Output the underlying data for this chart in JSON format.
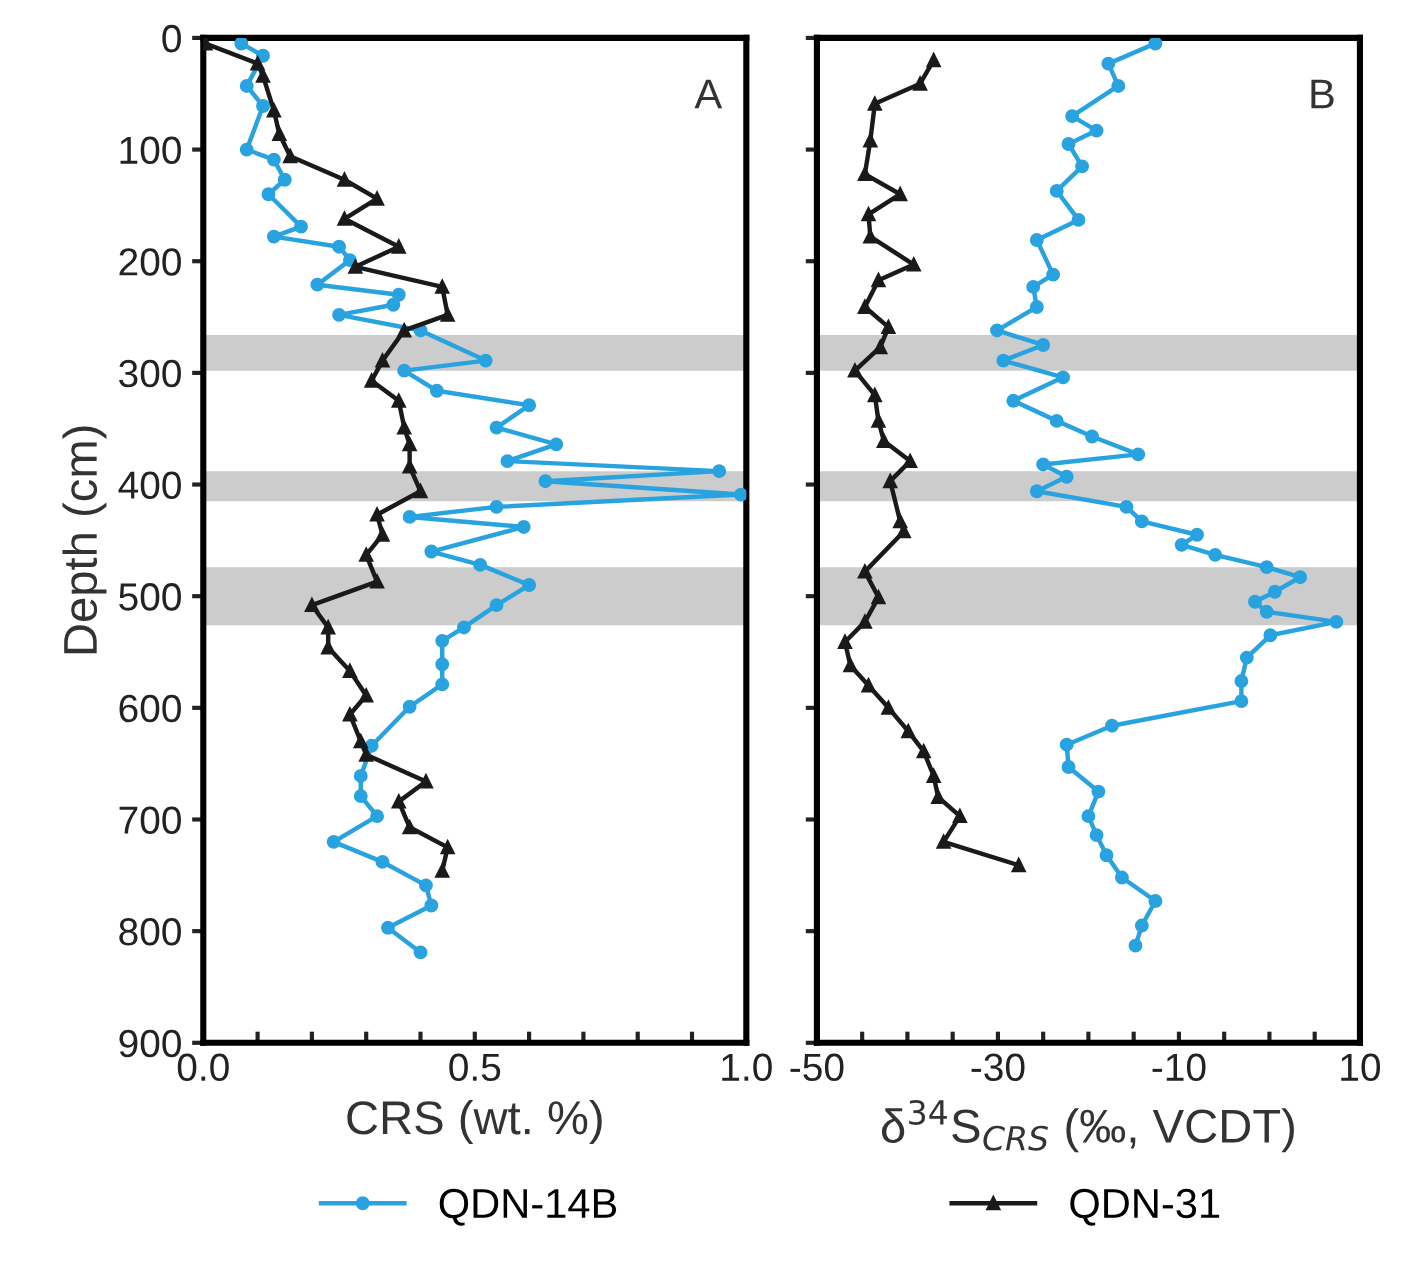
{
  "chart_data": [
    {
      "type": "line",
      "xlabel": "CRS (wt. %)",
      "ylabel": "Depth (cm)",
      "annotations": [
        "A"
      ],
      "xlim": [
        0,
        1.0
      ],
      "ylim": [
        900,
        0
      ],
      "xticks": [
        {
          "value": 0,
          "label": "0.0"
        },
        {
          "value": 0.1,
          "label": null
        },
        {
          "value": 0.2,
          "label": null
        },
        {
          "value": 0.3,
          "label": null
        },
        {
          "value": 0.4,
          "label": null
        },
        {
          "value": 0.5,
          "label": "0.5"
        },
        {
          "value": 0.6,
          "label": null
        },
        {
          "value": 0.7,
          "label": null
        },
        {
          "value": 0.8,
          "label": null
        },
        {
          "value": 0.9,
          "label": null
        },
        {
          "value": 1.0,
          "label": "1.0"
        }
      ],
      "yticks": [
        0,
        100,
        200,
        300,
        400,
        500,
        600,
        700,
        800,
        900
      ],
      "legend": "bottom",
      "line_style": "solid",
      "bands": [
        {
          "axis": "y",
          "from": 266,
          "to": 298,
          "color": "#cccccc"
        },
        {
          "axis": "y",
          "from": 388,
          "to": 415,
          "color": "#cccccc"
        },
        {
          "axis": "y",
          "from": 474,
          "to": 526,
          "color": "#cccccc"
        }
      ],
      "series": [
        {
          "name": "QDN-14B",
          "color": "#29a3e0",
          "marker": "circle",
          "x": [
            0.07,
            0.11,
            0.08,
            0.11,
            0.08,
            0.13,
            0.15,
            0.12,
            0.18,
            0.13,
            0.25,
            0.27,
            0.21,
            0.36,
            0.35,
            0.25,
            0.4,
            0.52,
            0.37,
            0.43,
            0.6,
            0.54,
            0.65,
            0.56,
            0.95,
            0.63,
            0.99,
            0.54,
            0.38,
            0.59,
            0.42,
            0.51,
            0.6,
            0.54,
            0.48,
            0.44,
            0.44,
            0.44,
            0.38,
            0.31,
            0.29,
            0.29,
            0.32,
            0.24,
            0.33,
            0.41,
            0.42,
            0.34,
            0.4
          ],
          "values": [
            5,
            16,
            43,
            61,
            100,
            109,
            127,
            140,
            169,
            178,
            187,
            199,
            221,
            230,
            239,
            248,
            262,
            289,
            298,
            316,
            329,
            349,
            364,
            379,
            388,
            397,
            409,
            420,
            429,
            438,
            460,
            472,
            490,
            508,
            528,
            540,
            561,
            579,
            599,
            634,
            661,
            679,
            697,
            720,
            738,
            759,
            777,
            797,
            819
          ]
        },
        {
          "name": "QDN-31",
          "color": "#1a1a1a",
          "marker": "triangle",
          "x": [
            0.004,
            0.1,
            0.11,
            0.13,
            0.14,
            0.16,
            0.26,
            0.32,
            0.26,
            0.36,
            0.28,
            0.44,
            0.45,
            0.37,
            0.33,
            0.31,
            0.36,
            0.37,
            0.38,
            0.38,
            0.4,
            0.32,
            0.33,
            0.3,
            0.32,
            0.2,
            0.23,
            0.23,
            0.27,
            0.3,
            0.27,
            0.29,
            0.3,
            0.41,
            0.36,
            0.38,
            0.45,
            0.44
          ],
          "values": [
            5,
            23,
            34,
            65,
            86,
            106,
            127,
            144,
            162,
            187,
            205,
            223,
            248,
            262,
            289,
            307,
            325,
            349,
            364,
            384,
            406,
            427,
            445,
            463,
            487,
            508,
            528,
            546,
            567,
            589,
            606,
            630,
            642,
            666,
            684,
            707,
            725,
            746
          ]
        }
      ]
    },
    {
      "type": "line",
      "xlabel": "δ$^{34}$S$_{CRS}$ (‰, VCDT)",
      "annotations": [
        "B"
      ],
      "xlim": [
        -50,
        10
      ],
      "ylim": [
        900,
        0
      ],
      "tick_labels": "x",
      "xticks": [
        -50,
        {
          "value": -45,
          "label": null
        },
        {
          "value": -40,
          "label": null
        },
        {
          "value": -35,
          "label": null
        },
        -30,
        {
          "value": -25,
          "label": null
        },
        {
          "value": -20,
          "label": null
        },
        {
          "value": -15,
          "label": null
        },
        -10,
        {
          "value": -5,
          "label": null
        },
        {
          "value": 0,
          "label": null
        },
        {
          "value": 5,
          "label": null
        },
        10
      ],
      "yticks": [
        0,
        100,
        200,
        300,
        400,
        500,
        600,
        700,
        800,
        900
      ],
      "line_style": "solid",
      "bands": [
        {
          "axis": "y",
          "from": 266,
          "to": 298,
          "color": "#cccccc"
        },
        {
          "axis": "y",
          "from": 388,
          "to": 415,
          "color": "#cccccc"
        },
        {
          "axis": "y",
          "from": 474,
          "to": 526,
          "color": "#cccccc"
        }
      ],
      "series": [
        {
          "name": "QDN-14B",
          "color": "#29a3e0",
          "marker": "circle",
          "x": [
            -12.6,
            -17.8,
            -16.7,
            -21.8,
            -19.1,
            -22.2,
            -20.7,
            -23.5,
            -21.1,
            -25.7,
            -23.9,
            -26.1,
            -25.7,
            -30.1,
            -25.0,
            -29.4,
            -22.8,
            -28.3,
            -23.5,
            -19.6,
            -14.5,
            -25.0,
            -22.4,
            -25.7,
            -15.8,
            -14.1,
            -8.0,
            -9.7,
            -6.0,
            -0.3,
            3.4,
            0.6,
            -1.6,
            -0.3,
            7.4,
            0.1,
            -2.5,
            -3.1,
            -3.1,
            -17.4,
            -22.4,
            -22.2,
            -18.9,
            -20.0,
            -19.1,
            -18.0,
            -16.3,
            -12.6,
            -14.1,
            -14.8
          ],
          "values": [
            5,
            23,
            43,
            70,
            83,
            95,
            115,
            137,
            163,
            181,
            212,
            223,
            241,
            262,
            275,
            289,
            304,
            325,
            343,
            357,
            373,
            382,
            393,
            406,
            420,
            433,
            445,
            454,
            463,
            474,
            483,
            496,
            505,
            514,
            523,
            535,
            555,
            576,
            594,
            616,
            633,
            653,
            675,
            697,
            714,
            732,
            752,
            773,
            795,
            813
          ]
        },
        {
          "name": "QDN-31",
          "color": "#1a1a1a",
          "marker": "triangle",
          "x": [
            -37.1,
            -38.6,
            -43.6,
            -44.1,
            -44.7,
            -40.8,
            -44.3,
            -44.1,
            -39.3,
            -43.2,
            -44.7,
            -42.1,
            -43.0,
            -45.8,
            -43.6,
            -43.2,
            -42.6,
            -39.7,
            -41.9,
            -40.8,
            -40.4,
            -44.7,
            -43.2,
            -44.7,
            -46.9,
            -46.3,
            -44.3,
            -42.1,
            -39.9,
            -38.2,
            -37.1,
            -36.6,
            -34.2,
            -36.0,
            -27.7
          ],
          "values": [
            20,
            41,
            59,
            92,
            122,
            140,
            158,
            178,
            203,
            217,
            241,
            259,
            277,
            298,
            320,
            343,
            361,
            379,
            397,
            433,
            442,
            478,
            501,
            523,
            541,
            562,
            580,
            600,
            621,
            639,
            661,
            680,
            697,
            720,
            741
          ]
        }
      ]
    }
  ]
}
